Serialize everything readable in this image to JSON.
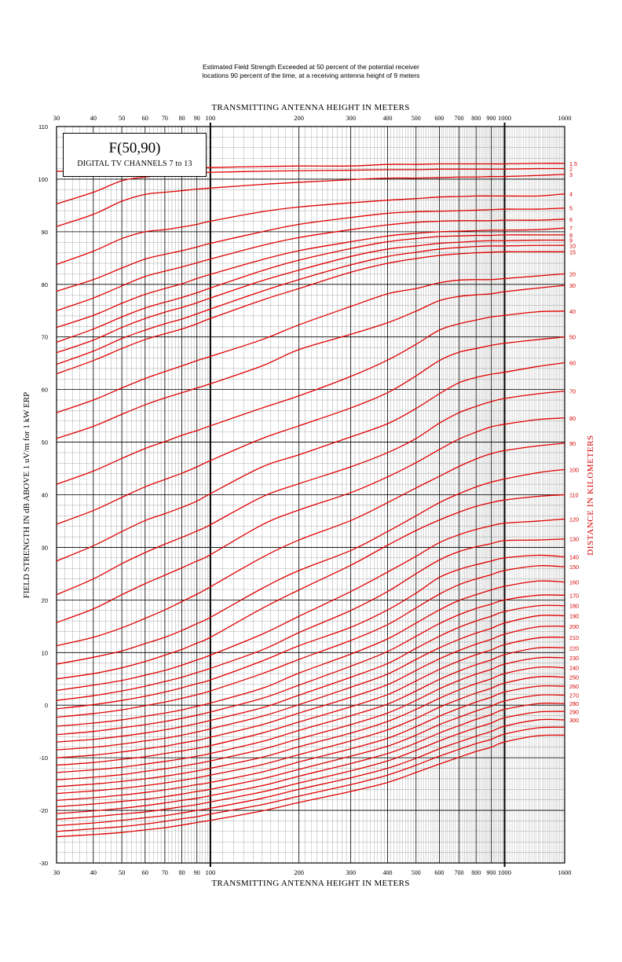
{
  "header": {
    "caption_line1": "Estimated Field Strength Exceeded at 50 percent of the potential receiver",
    "caption_line2": "locations 90 percent of the time, at a receiving antenna height of 9 meters"
  },
  "title_box": {
    "title": "F(50,90)",
    "subtitle": "DIGITAL TV CHANNELS 7 to 13"
  },
  "colors": {
    "curve": "#e00000",
    "label": "#d40000",
    "grid": "#000000"
  },
  "chart_data": {
    "type": "line",
    "title": "F(50,90)",
    "subtitle": "DIGITAL TV CHANNELS 7 to 13",
    "xlabel_top": "TRANSMITTING ANTENNA HEIGHT IN METERS",
    "xlabel": "TRANSMITTING ANTENNA HEIGHT IN METERS",
    "ylabel": "FIELD STRENGTH IN dB ABOVE 1 uV/m for 1 kW ERP",
    "y2label": "DISTANCE IN KILOMETERS",
    "x_scale": "log",
    "xlim": [
      30,
      1600
    ],
    "ylim": [
      -30,
      110
    ],
    "x_ticks": [
      30,
      40,
      50,
      60,
      70,
      80,
      90,
      100,
      200,
      300,
      400,
      500,
      600,
      700,
      800,
      900,
      1000,
      1600
    ],
    "x_tick_labels": [
      "30",
      "40",
      "50",
      "60",
      "70",
      "80",
      "90",
      "100",
      "200",
      "300",
      "400",
      "500",
      "600",
      "700",
      "800",
      "900",
      "1000",
      "1600"
    ],
    "y_ticks": [
      -30,
      -20,
      -10,
      0,
      10,
      20,
      30,
      40,
      50,
      60,
      70,
      80,
      90,
      100,
      110
    ],
    "y_tick_labels": [
      "-30",
      "-20",
      "-10",
      "0",
      "10",
      "20",
      "30",
      "40",
      "50",
      "60",
      "70",
      "80",
      "90",
      "100",
      "110"
    ],
    "grid": true,
    "series_label_position": "right",
    "x_sample_heights": [
      30,
      40,
      50,
      60,
      70,
      80,
      90,
      100,
      150,
      200,
      300,
      400,
      500,
      600,
      700,
      800,
      900,
      1000,
      1300,
      1600
    ],
    "series": [
      {
        "name": "1.5",
        "values": [
          101.5,
          101.5,
          101.6,
          101.7,
          101.8,
          101.9,
          102,
          102.2,
          102.4,
          102.5,
          102.5,
          102.8,
          102.8,
          102.9,
          102.9,
          102.9,
          102.9,
          102.9,
          103,
          103
        ]
      },
      {
        "name": "2",
        "values": [
          95.3,
          97.5,
          99.7,
          100.4,
          100.8,
          101,
          101.2,
          101.3,
          101.5,
          101.6,
          101.7,
          101.8,
          101.8,
          101.9,
          101.9,
          101.9,
          101.9,
          101.9,
          102,
          102
        ]
      },
      {
        "name": "3",
        "values": [
          91,
          93.3,
          95.8,
          97.1,
          97.5,
          97.8,
          98.1,
          98.3,
          99,
          99.4,
          99.9,
          100.2,
          100.2,
          100.3,
          100.4,
          100.4,
          100.5,
          100.5,
          100.7,
          100.9
        ]
      },
      {
        "name": "4",
        "values": [
          83.8,
          86.3,
          88.7,
          90,
          90.4,
          90.9,
          91.4,
          92,
          93.8,
          94.7,
          95.5,
          96,
          96.3,
          96.6,
          96.7,
          96.8,
          96.8,
          96.8,
          96.8,
          97.2
        ]
      },
      {
        "name": "5",
        "values": [
          78.7,
          80.9,
          83.1,
          84.8,
          85.7,
          86.4,
          87.1,
          87.8,
          90,
          91.4,
          92.7,
          93.5,
          93.8,
          93.9,
          94,
          94.1,
          94.2,
          94.3,
          94.3,
          94.5
        ]
      },
      {
        "name": "6",
        "values": [
          75,
          77.4,
          79.7,
          81.5,
          82.5,
          83.3,
          84.1,
          84.8,
          87.4,
          88.9,
          90.4,
          91.3,
          91.8,
          92,
          92.1,
          92.1,
          92.1,
          92.2,
          92.2,
          92.4
        ]
      },
      {
        "name": "7",
        "values": [
          71.8,
          74.1,
          76.4,
          78.1,
          79.2,
          80.1,
          81.1,
          81.9,
          84.7,
          86.4,
          88.1,
          89.2,
          89.7,
          90,
          90.1,
          90.2,
          90.3,
          90.3,
          90.4,
          90.7
        ]
      },
      {
        "name": "8",
        "values": [
          69,
          71.5,
          73.8,
          75.5,
          76.6,
          77.5,
          78.4,
          79.3,
          82.6,
          84.6,
          86.8,
          88.1,
          88.7,
          89.1,
          89.2,
          89.3,
          89.3,
          89.4,
          89.4,
          89.4
        ]
      },
      {
        "name": "9",
        "values": [
          67,
          69.4,
          71.8,
          73.5,
          74.7,
          75.6,
          76.5,
          77.4,
          80.7,
          82.7,
          85.3,
          86.7,
          87.3,
          87.8,
          88,
          88.2,
          88.3,
          88.3,
          88.4,
          88.4
        ]
      },
      {
        "name": "10",
        "values": [
          64.8,
          67.3,
          69.7,
          71.3,
          72.5,
          73.4,
          74.4,
          75.3,
          78.7,
          80.9,
          83.7,
          85.3,
          86.1,
          86.7,
          87,
          87.2,
          87.3,
          87.3,
          87.4,
          87.4
        ]
      },
      {
        "name": "15",
        "values": [
          63,
          65.5,
          67.8,
          69.5,
          70.6,
          71.5,
          72.5,
          73.5,
          77,
          79.2,
          82.3,
          84,
          84.9,
          85.5,
          85.8,
          86,
          86.1,
          86.2,
          86.2,
          86.2
        ]
      },
      {
        "name": "20",
        "values": [
          55.6,
          58,
          60.3,
          62.1,
          63.4,
          64.5,
          65.5,
          66.3,
          69.5,
          72.3,
          75.8,
          78.2,
          79.2,
          80.3,
          80.8,
          80.9,
          80.9,
          81.1,
          81.6,
          82
        ]
      },
      {
        "name": "30",
        "values": [
          50.7,
          53,
          55.3,
          57.1,
          58.4,
          59.4,
          60.3,
          61.1,
          64.5,
          67.6,
          70.5,
          72.7,
          74.9,
          76.9,
          77.7,
          78,
          78.2,
          78.6,
          79.3,
          79.8
        ]
      },
      {
        "name": "40",
        "values": [
          42,
          44.5,
          46.9,
          48.8,
          50.1,
          51.3,
          52.2,
          53.1,
          56.5,
          58.8,
          62.5,
          65.6,
          68.6,
          71.3,
          72.5,
          73.2,
          73.8,
          74.1,
          74.8,
          74.9
        ]
      },
      {
        "name": "50",
        "values": [
          34.4,
          37,
          39.5,
          41.5,
          42.9,
          44.1,
          45.3,
          46.5,
          50.7,
          53.1,
          56.5,
          59.4,
          62.6,
          65.5,
          67.1,
          67.8,
          68.4,
          68.8,
          69.5,
          70
        ]
      },
      {
        "name": "60",
        "values": [
          27.4,
          30.3,
          33,
          35.1,
          36.4,
          37.6,
          38.8,
          40.2,
          45.3,
          47.6,
          51,
          53.5,
          56.4,
          59.2,
          61.3,
          62.3,
          62.9,
          63.3,
          64.4,
          65.1
        ]
      },
      {
        "name": "70",
        "values": [
          21,
          24,
          26.9,
          29,
          30.6,
          31.9,
          33.1,
          34.3,
          39.6,
          42.1,
          45.3,
          48,
          50.7,
          53.6,
          55.6,
          56.8,
          57.7,
          58.3,
          59.2,
          59.7
        ]
      },
      {
        "name": "80",
        "values": [
          15.7,
          18.3,
          21,
          23.1,
          24.7,
          26.1,
          27.4,
          28.6,
          34.3,
          37.1,
          40.4,
          43.4,
          46.1,
          48.6,
          50.6,
          51.9,
          52.9,
          53.4,
          54.3,
          54.6
        ]
      },
      {
        "name": "90",
        "values": [
          11.3,
          12.9,
          14.7,
          16.5,
          18.1,
          19.7,
          21.1,
          22.5,
          28.1,
          31.4,
          35.1,
          38.5,
          41.3,
          43.5,
          45.4,
          46.8,
          47.8,
          48.4,
          49.3,
          49.8
        ]
      },
      {
        "name": "100",
        "values": [
          7.8,
          9.1,
          10.3,
          11.7,
          12.9,
          14.2,
          15.5,
          16.7,
          22.2,
          25.6,
          29.4,
          33,
          36,
          38.5,
          40.2,
          41.5,
          42.4,
          43,
          44.2,
          44.8
        ]
      },
      {
        "name": "110",
        "values": [
          5,
          6,
          7.1,
          8.3,
          9.5,
          10.6,
          11.8,
          12.9,
          18.4,
          21.9,
          26.6,
          30.4,
          33.2,
          35.2,
          36.7,
          37.8,
          38.5,
          39,
          39.7,
          40
        ]
      },
      {
        "name": "120",
        "values": [
          2.8,
          3.8,
          4.7,
          5.7,
          6.6,
          7.6,
          8.6,
          9.5,
          13.5,
          16.9,
          21.6,
          25.3,
          28.3,
          30.9,
          32.4,
          33.4,
          34.1,
          34.6,
          35,
          35.4
        ]
      },
      {
        "name": "130",
        "values": [
          0.9,
          1.8,
          2.7,
          3.6,
          4.5,
          5.3,
          6.2,
          7,
          10.5,
          13.8,
          18,
          21.6,
          25,
          27.6,
          29.2,
          30.1,
          30.7,
          31.3,
          31.4,
          31.6
        ]
      },
      {
        "name": "140",
        "values": [
          -0.7,
          0.1,
          0.9,
          1.7,
          2.5,
          3.3,
          4.1,
          4.8,
          8.4,
          11.3,
          14.8,
          18.1,
          21.3,
          24.3,
          25.8,
          26.7,
          27.4,
          28,
          28.5,
          28.2
        ]
      },
      {
        "name": "150",
        "values": [
          -2.3,
          -1.6,
          -0.9,
          -0.1,
          0.6,
          1.3,
          2,
          2.7,
          6,
          8.7,
          12.3,
          15.3,
          18.5,
          21.1,
          22.9,
          24,
          24.8,
          25.6,
          26.5,
          26.3
        ]
      },
      {
        "name": "160",
        "values": [
          -4,
          -3.4,
          -2.8,
          -2.1,
          -1.5,
          -0.9,
          -0.2,
          0.4,
          3.2,
          6.1,
          9.7,
          12.6,
          15.6,
          18.1,
          19.9,
          21,
          21.9,
          22.6,
          23.6,
          23.4
        ]
      },
      {
        "name": "170",
        "values": [
          -5.6,
          -5,
          -4.3,
          -3.7,
          -3.1,
          -2.5,
          -1.9,
          -1.3,
          1.3,
          3.8,
          7.4,
          10.2,
          13.1,
          15.5,
          17.2,
          18.4,
          19.2,
          20,
          20.9,
          20.9
        ]
      },
      {
        "name": "180",
        "values": [
          -7,
          -6.5,
          -5.9,
          -5.3,
          -4.7,
          -4.1,
          -3.5,
          -2.9,
          -0.5,
          1.9,
          5.3,
          7.9,
          10.8,
          13.1,
          14.8,
          16,
          16.9,
          17.8,
          18.9,
          18.9
        ]
      },
      {
        "name": "190",
        "values": [
          -8.5,
          -8,
          -7.4,
          -6.8,
          -6.3,
          -5.7,
          -5.1,
          -4.5,
          -2.1,
          0.1,
          3.4,
          5.9,
          8.7,
          10.9,
          12.5,
          13.7,
          14.6,
          15.6,
          17,
          17
        ]
      },
      {
        "name": "200",
        "values": [
          -10,
          -9.5,
          -8.9,
          -8.3,
          -7.8,
          -7.2,
          -6.7,
          -6.1,
          -3.7,
          -1.5,
          1.5,
          3.9,
          6.6,
          8.8,
          10.4,
          11.6,
          12.5,
          13.5,
          14.9,
          15
        ]
      },
      {
        "name": "210",
        "values": [
          -11.4,
          -10.9,
          -10.3,
          -9.8,
          -9.2,
          -8.7,
          -8.2,
          -7.7,
          -5.3,
          -3.2,
          -0.3,
          2,
          4.6,
          6.8,
          8.4,
          9.6,
          10.5,
          11.5,
          12.8,
          12.9
        ]
      },
      {
        "name": "220",
        "values": [
          -12.8,
          -12.3,
          -11.8,
          -11.2,
          -10.7,
          -10.2,
          -9.7,
          -9.2,
          -6.9,
          -4.8,
          -2,
          0.2,
          2.7,
          4.9,
          6.5,
          7.7,
          8.6,
          9.6,
          10.9,
          10.9
        ]
      },
      {
        "name": "230",
        "values": [
          -14.2,
          -13.7,
          -13.2,
          -12.6,
          -12.1,
          -11.6,
          -11.1,
          -10.6,
          -8.4,
          -6.4,
          -3.7,
          -1.5,
          0.9,
          3.1,
          4.7,
          5.9,
          6.8,
          7.8,
          9,
          9
        ]
      },
      {
        "name": "240",
        "values": [
          -15.5,
          -15,
          -14.5,
          -14,
          -13.5,
          -13,
          -12.5,
          -12,
          -9.9,
          -7.9,
          -5.3,
          -3.1,
          -0.8,
          1.3,
          2.9,
          4.1,
          5,
          6,
          7.2,
          7.1
        ]
      },
      {
        "name": "250",
        "values": [
          -16.8,
          -16.3,
          -15.8,
          -15.3,
          -14.8,
          -14.3,
          -13.8,
          -13.3,
          -11.3,
          -9.4,
          -6.8,
          -4.7,
          -2.5,
          -0.4,
          1.1,
          2.3,
          3.2,
          4.2,
          5.4,
          5.3
        ]
      },
      {
        "name": "260",
        "values": [
          -18.1,
          -17.6,
          -17.1,
          -16.6,
          -16.1,
          -15.6,
          -15.1,
          -14.7,
          -12.7,
          -10.8,
          -8.3,
          -6.3,
          -4.1,
          -2.1,
          -0.6,
          0.6,
          1.5,
          2.5,
          3.6,
          3.6
        ]
      },
      {
        "name": "270",
        "values": [
          -19.3,
          -18.8,
          -18.3,
          -17.9,
          -17.4,
          -16.9,
          -16.4,
          -16,
          -14,
          -12.2,
          -9.7,
          -7.8,
          -5.7,
          -3.7,
          -2.3,
          -1.1,
          -0.2,
          0.8,
          1.9,
          1.9
        ]
      },
      {
        "name": "280",
        "values": [
          -20.6,
          -20.1,
          -19.6,
          -19.1,
          -18.6,
          -18.1,
          -17.7,
          -17.2,
          -15.3,
          -13.5,
          -11.1,
          -9.2,
          -7.2,
          -5.3,
          -3.9,
          -2.7,
          -1.8,
          -0.8,
          0.3,
          0.3
        ]
      },
      {
        "name": "290",
        "values": [
          -21.7,
          -21.2,
          -20.7,
          -20.3,
          -19.8,
          -19.3,
          -18.9,
          -18.4,
          -16.5,
          -14.8,
          -12.5,
          -10.6,
          -8.6,
          -6.8,
          -5.4,
          -4.3,
          -3.4,
          -2.4,
          -1.3,
          -1.2
        ]
      },
      {
        "name": "300",
        "values": [
          -22.9,
          -22.4,
          -21.9,
          -21.4,
          -21,
          -20.5,
          -20,
          -19.6,
          -17.7,
          -16,
          -13.8,
          -12,
          -10.1,
          -8.3,
          -7,
          -5.9,
          -5,
          -4,
          -2.8,
          -2.8
        ]
      },
      {
        "name": "",
        "values": [
          -24,
          -23.5,
          -23.1,
          -22.6,
          -22.1,
          -21.6,
          -21.2,
          -20.7,
          -18.9,
          -17.3,
          -15.1,
          -13.3,
          -11.4,
          -9.7,
          -8.4,
          -7.3,
          -6.5,
          -5.5,
          -4.3,
          -4.2
        ]
      },
      {
        "name": "",
        "values": [
          -25,
          -24.6,
          -24.2,
          -23.7,
          -23.3,
          -22.8,
          -22.3,
          -21.9,
          -20.1,
          -18.5,
          -16.4,
          -14.7,
          -12.8,
          -11.2,
          -9.9,
          -8.8,
          -8,
          -7,
          -5.8,
          -5.7
        ]
      }
    ]
  }
}
